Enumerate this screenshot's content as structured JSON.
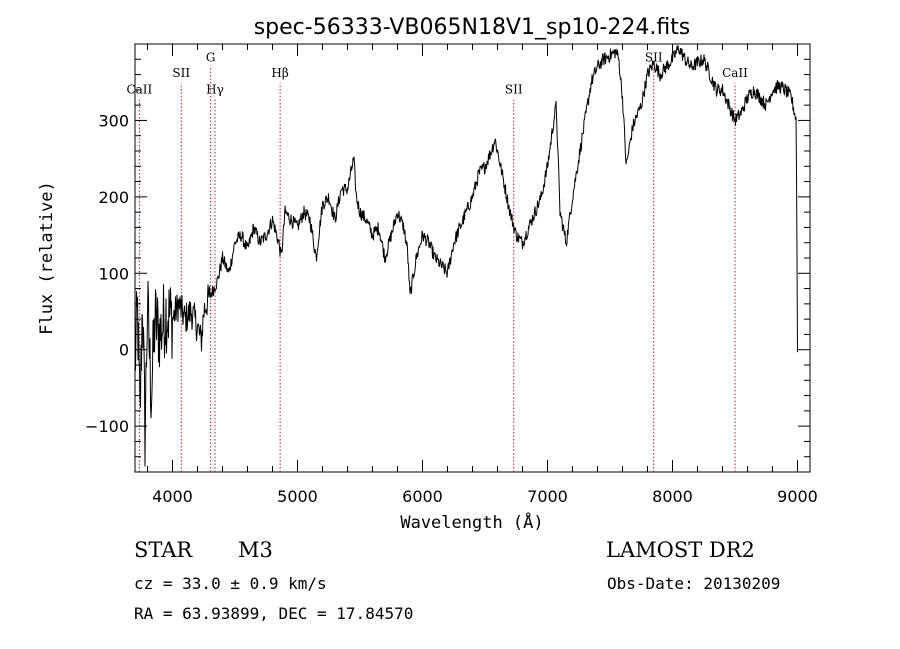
{
  "chart_data": {
    "type": "line",
    "title": "spec-56333-VB065N18V1_sp10-224.fits",
    "xlabel": "Wavelength (Å)",
    "ylabel": "Flux (relative)",
    "xlim": [
      3700,
      9100
    ],
    "ylim": [
      -160,
      400
    ],
    "xticks": [
      4000,
      5000,
      6000,
      7000,
      8000,
      9000
    ],
    "yticks": [
      -100,
      0,
      100,
      200,
      300
    ],
    "series_color": "#000000",
    "line_marker_color": "#b22222",
    "series": [
      {
        "x": [
          3700,
          3720,
          3740,
          3760,
          3780,
          3800,
          3830,
          3860,
          3900,
          3950,
          4000,
          4050,
          4100,
          4150,
          4200,
          4230,
          4250,
          4270,
          4300,
          4330,
          4360,
          4400,
          4450,
          4500,
          4550,
          4600,
          4650,
          4700,
          4750,
          4800,
          4850,
          4870,
          4900,
          4950,
          5000,
          5050,
          5100,
          5150,
          5170,
          5200,
          5250,
          5300,
          5350,
          5400,
          5450,
          5470,
          5500,
          5550,
          5600,
          5650,
          5700,
          5750,
          5800,
          5850,
          5880,
          5900,
          5950,
          6000,
          6050,
          6100,
          6150,
          6200,
          6250,
          6300,
          6350,
          6400,
          6450,
          6500,
          6550,
          6580,
          6600,
          6650,
          6700,
          6750,
          6800,
          6850,
          6900,
          6950,
          7000,
          7050,
          7070,
          7100,
          7150,
          7200,
          7250,
          7300,
          7350,
          7400,
          7450,
          7500,
          7550,
          7570,
          7600,
          7630,
          7660,
          7680,
          7700,
          7750,
          7800,
          7850,
          7900,
          7950,
          8000,
          8050,
          8100,
          8150,
          8200,
          8250,
          8300,
          8350,
          8400,
          8450,
          8500,
          8550,
          8600,
          8650,
          8700,
          8750,
          8800,
          8850,
          8900,
          8950,
          8990,
          9000
        ],
        "y": [
          -20,
          50,
          -90,
          70,
          -110,
          60,
          -60,
          40,
          20,
          50,
          40,
          60,
          40,
          50,
          30,
          10,
          50,
          60,
          70,
          80,
          90,
          120,
          100,
          140,
          150,
          130,
          160,
          140,
          150,
          170,
          140,
          120,
          180,
          170,
          160,
          180,
          170,
          120,
          150,
          190,
          200,
          170,
          210,
          210,
          250,
          200,
          180,
          170,
          150,
          160,
          120,
          150,
          180,
          160,
          130,
          70,
          120,
          150,
          140,
          120,
          110,
          100,
          140,
          160,
          180,
          200,
          230,
          240,
          260,
          275,
          260,
          220,
          180,
          150,
          140,
          160,
          180,
          200,
          240,
          300,
          320,
          180,
          140,
          200,
          250,
          300,
          350,
          370,
          380,
          385,
          390,
          380,
          330,
          240,
          270,
          290,
          300,
          320,
          360,
          375,
          360,
          370,
          380,
          395,
          380,
          370,
          375,
          380,
          360,
          340,
          340,
          320,
          300,
          310,
          330,
          340,
          330,
          320,
          340,
          345,
          340,
          330,
          300,
          0
        ]
      }
    ],
    "line_markers": [
      {
        "label": "CaII",
        "x": 3735,
        "y": 335,
        "anchor": "middle"
      },
      {
        "label": "SII",
        "x": 4070,
        "y": 357,
        "anchor": "middle"
      },
      {
        "label": "G",
        "x": 4305,
        "y": 377,
        "anchor": "middle"
      },
      {
        "label": "Hγ",
        "x": 4340,
        "y": 335,
        "anchor": "middle"
      },
      {
        "label": "Hβ",
        "x": 4861,
        "y": 357,
        "anchor": "middle"
      },
      {
        "label": "SII",
        "x": 6730,
        "y": 335,
        "anchor": "middle"
      },
      {
        "label": "SII",
        "x": 7850,
        "y": 377,
        "anchor": "middle"
      },
      {
        "label": "CaII",
        "x": 8500,
        "y": 357,
        "anchor": "middle"
      }
    ]
  },
  "info": {
    "object_class": "STAR",
    "subclass": "M3",
    "survey": "LAMOST DR2",
    "cz": "cz = 33.0 ± 0.9 km/s",
    "obs_date": "Obs-Date: 20130209",
    "coords": "RA =  63.93899, DEC =  17.84570"
  }
}
